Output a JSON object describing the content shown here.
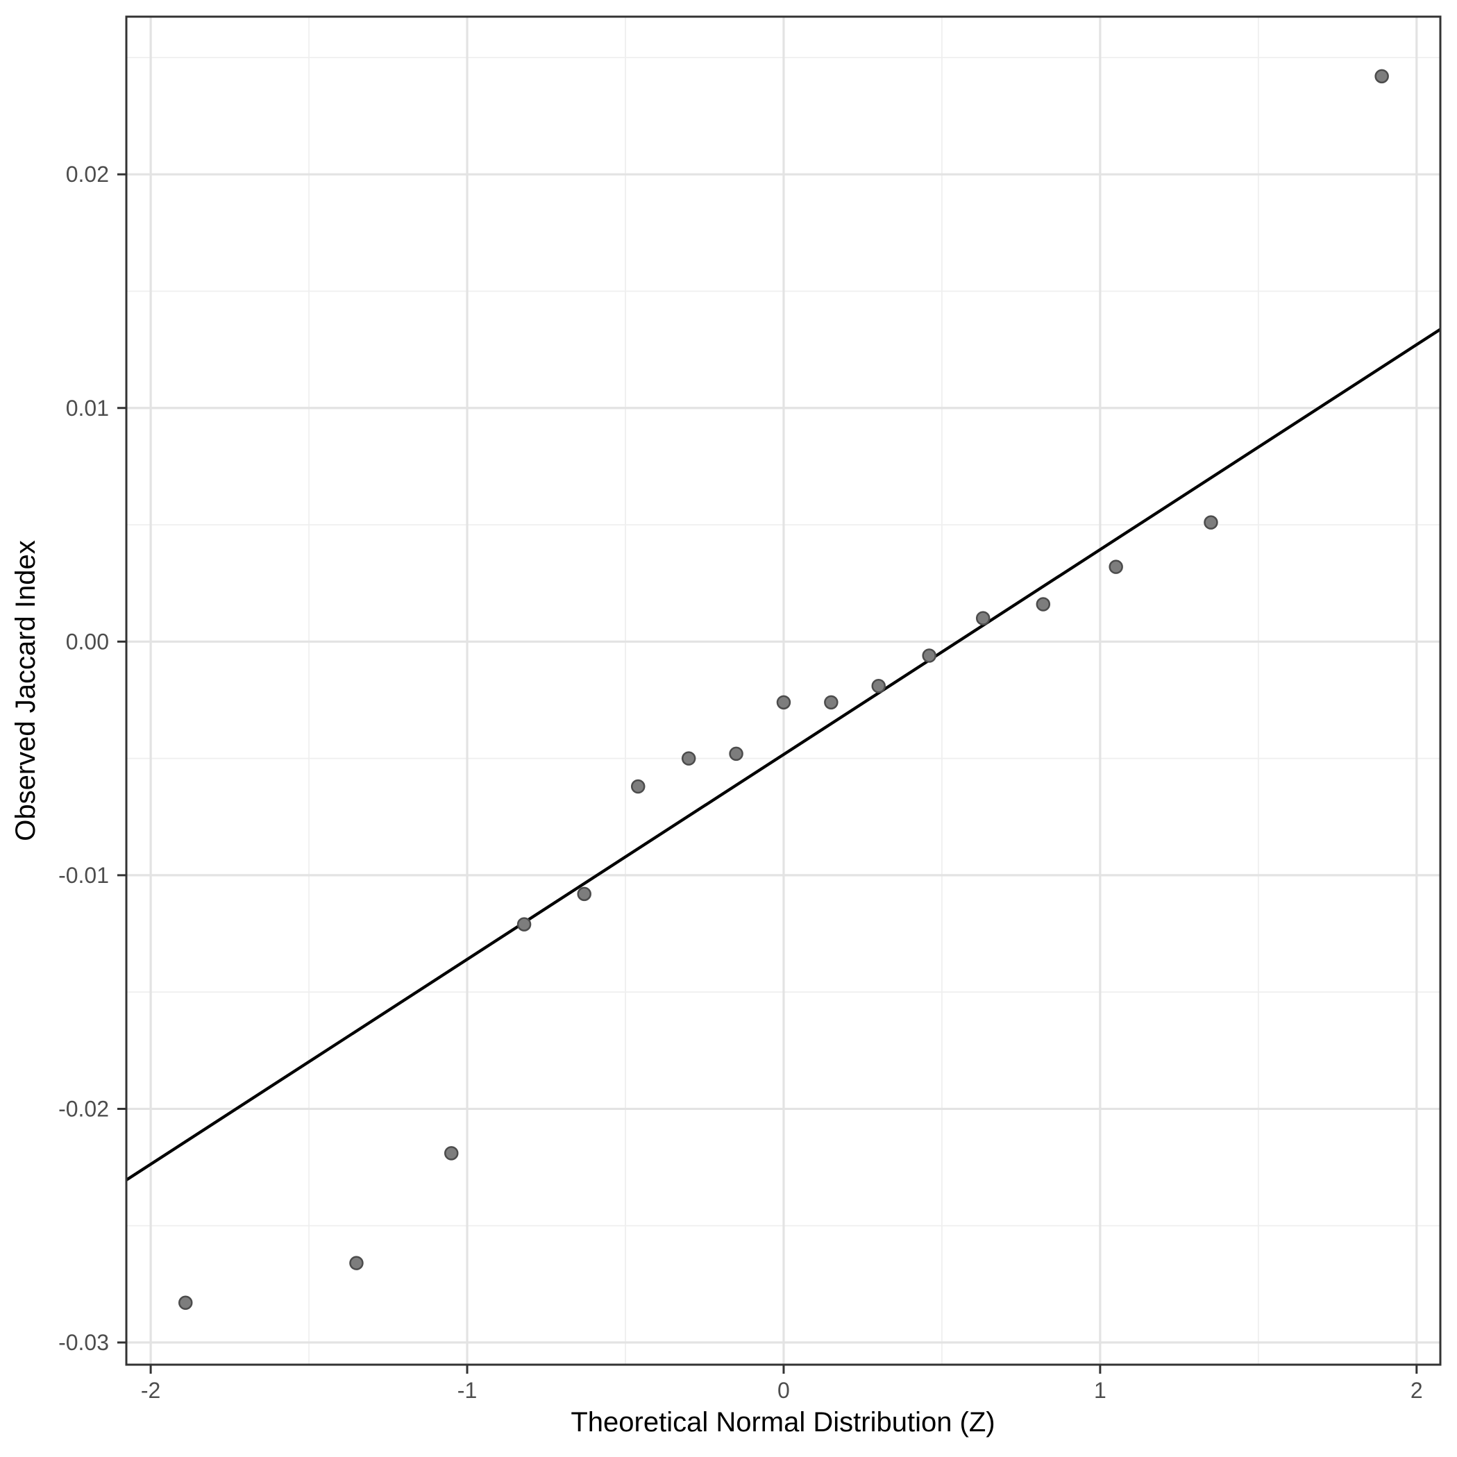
{
  "figure": {
    "kind": "qq-plot",
    "background": "#ffffff"
  },
  "axes": {
    "x": {
      "title": "Theoretical Normal Distribution (Z)",
      "tick_values": [
        -2,
        -1,
        0,
        1,
        2
      ],
      "tick_labels": [
        "-2",
        "-1",
        "0",
        "1",
        "2"
      ],
      "minor_values": [
        -1.5,
        -0.5,
        0.5,
        1.5
      ],
      "range": [
        -2.077,
        2.075
      ]
    },
    "y": {
      "title": "Observed Jaccard Index",
      "tick_values": [
        0.02,
        0.01,
        0.0,
        -0.01,
        -0.02,
        -0.03
      ],
      "tick_labels": [
        "0.02",
        "0.01",
        "0.00",
        "-0.01",
        "-0.02",
        "-0.03"
      ],
      "minor_values": [
        0.025,
        0.015,
        0.005,
        -0.005,
        -0.015,
        -0.025
      ],
      "range": [
        -0.03095,
        0.02675
      ]
    }
  },
  "chart_data": {
    "type": "scatter",
    "title": "",
    "xlabel": "Theoretical Normal Distribution (Z)",
    "ylabel": "Observed Jaccard Index",
    "x": [
      -1.89,
      -1.35,
      -1.05,
      -0.82,
      -0.63,
      -0.46,
      -0.3,
      -0.15,
      0.0,
      0.15,
      0.3,
      0.46,
      0.63,
      0.82,
      1.05,
      1.35,
      1.89
    ],
    "y": [
      -0.0283,
      -0.0266,
      -0.0219,
      -0.0121,
      -0.0108,
      -0.0062,
      -0.005,
      -0.0048,
      -0.0026,
      -0.0026,
      -0.0019,
      -0.0006,
      0.001,
      0.0016,
      0.0032,
      0.0051,
      0.0242
    ],
    "reference_line": {
      "slope": 0.00877,
      "intercept": -0.00483
    },
    "xlim": [
      -2.077,
      2.075
    ],
    "ylim": [
      -0.03095,
      0.02675
    ],
    "grid": "on",
    "legend": "none"
  },
  "style": {
    "point_fill": "#7d7d7d",
    "point_stroke": "#4c4c4c",
    "line_color": "#000000",
    "grid_major_color": "#e3e3e3",
    "grid_minor_color": "#efefef",
    "panel_border_color": "#333333",
    "tick_color": "#333333",
    "tick_label_color": "#4d4d4d",
    "axis_title_color": "#000000"
  }
}
